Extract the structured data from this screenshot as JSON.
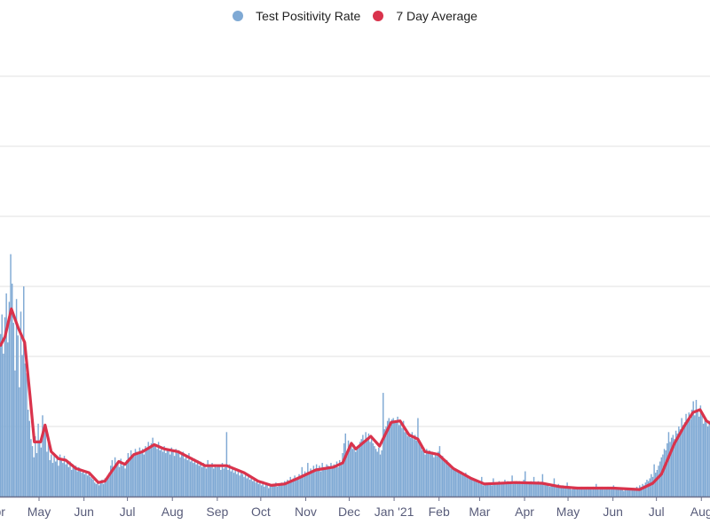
{
  "chart_data": {
    "type": "bar",
    "title": "",
    "xlabel": "",
    "ylabel": "",
    "legend_position": "top-center",
    "grid": true,
    "y_gridlines": [
      5,
      10,
      15,
      20,
      25,
      30
    ],
    "ylim": [
      0,
      30
    ],
    "start_date": "2020-04-01",
    "x_ticks": [
      {
        "day": 0,
        "label": "Apr"
      },
      {
        "day": 30,
        "label": "May"
      },
      {
        "day": 61,
        "label": "Jun"
      },
      {
        "day": 91,
        "label": "Jul"
      },
      {
        "day": 122,
        "label": "Aug"
      },
      {
        "day": 153,
        "label": "Sep"
      },
      {
        "day": 183,
        "label": "Oct"
      },
      {
        "day": 214,
        "label": "Nov"
      },
      {
        "day": 244,
        "label": "Dec"
      },
      {
        "day": 275,
        "label": "Jan '21"
      },
      {
        "day": 306,
        "label": "Feb"
      },
      {
        "day": 334,
        "label": "Mar"
      },
      {
        "day": 365,
        "label": "Apr"
      },
      {
        "day": 395,
        "label": "May"
      },
      {
        "day": 426,
        "label": "Jun"
      },
      {
        "day": 456,
        "label": "Jul"
      },
      {
        "day": 487,
        "label": "Aug"
      }
    ],
    "series": [
      {
        "name": "Test Positivity Rate",
        "color": "#7fa9d4",
        "type": "bar",
        "values": [
          9.8,
          12.1,
          8.5,
          11.6,
          13.0,
          10.2,
          12.8,
          14.5,
          11.0,
          13.9,
          17.3,
          15.2,
          12.4,
          9.0,
          14.1,
          11.5,
          7.8,
          13.2,
          10.1,
          15.0,
          9.5,
          8.8,
          6.2,
          5.4,
          4.1,
          3.6,
          2.8,
          4.3,
          3.1,
          5.2,
          4.0,
          3.5,
          5.8,
          4.6,
          5.1,
          3.2,
          3.9,
          2.6,
          3.0,
          2.4,
          3.1,
          2.5,
          2.9,
          2.2,
          3.0,
          2.7,
          2.4,
          2.9,
          2.3,
          2.6,
          2.1,
          2.5,
          1.9,
          2.3,
          2.0,
          2.2,
          1.8,
          2.1,
          2.0,
          1.7,
          1.9,
          1.6,
          1.8,
          1.5,
          1.7,
          1.4,
          1.3,
          1.2,
          1.0,
          0.9,
          1.1,
          0.8,
          1.0,
          1.2,
          0.9,
          1.3,
          1.1,
          1.5,
          1.7,
          2.2,
          2.6,
          2.0,
          2.8,
          2.3,
          2.5,
          2.1,
          2.7,
          2.2,
          2.4,
          2.0,
          2.6,
          3.1,
          2.8,
          3.3,
          3.0,
          2.9,
          3.4,
          3.2,
          3.0,
          3.5,
          3.1,
          3.4,
          3.0,
          3.6,
          3.3,
          3.9,
          3.5,
          3.8,
          4.2,
          3.6,
          3.7,
          3.4,
          3.9,
          3.3,
          3.5,
          3.2,
          3.6,
          3.1,
          3.4,
          3.3,
          3.0,
          3.5,
          3.2,
          2.9,
          3.4,
          3.1,
          3.3,
          2.8,
          3.0,
          3.2,
          2.7,
          2.9,
          2.6,
          3.1,
          2.5,
          2.8,
          2.4,
          2.7,
          2.3,
          2.6,
          2.2,
          2.5,
          2.1,
          2.4,
          2.3,
          2.0,
          2.6,
          2.2,
          2.1,
          2.4,
          2.0,
          2.3,
          2.1,
          2.2,
          2.2,
          1.9,
          2.4,
          2.0,
          2.1,
          4.6,
          1.9,
          2.3,
          1.8,
          2.1,
          1.7,
          2.0,
          1.6,
          1.9,
          1.5,
          1.8,
          1.6,
          1.4,
          1.7,
          1.3,
          1.5,
          1.2,
          1.4,
          1.1,
          1.3,
          1.0,
          1.2,
          0.9,
          1.0,
          0.8,
          1.1,
          0.7,
          0.9,
          0.8,
          0.6,
          0.8,
          0.7,
          0.9,
          0.8,
          1.0,
          0.7,
          0.9,
          0.8,
          1.0,
          0.9,
          1.1,
          0.9,
          1.2,
          1.0,
          1.4,
          1.1,
          1.3,
          1.5,
          1.2,
          1.4,
          1.6,
          1.3,
          2.1,
          1.5,
          1.8,
          1.6,
          2.4,
          1.7,
          2.0,
          1.8,
          2.2,
          1.9,
          2.3,
          2.0,
          2.2,
          1.8,
          2.4,
          2.1,
          2.0,
          2.3,
          2.2,
          2.1,
          2.4,
          2.0,
          2.3,
          2.2,
          2.5,
          2.1,
          2.6,
          2.4,
          3.1,
          3.8,
          4.5,
          3.2,
          4.0,
          3.6,
          3.9,
          3.4,
          3.7,
          3.2,
          3.5,
          3.6,
          3.9,
          4.1,
          4.4,
          4.0,
          4.6,
          4.2,
          4.5,
          3.9,
          4.3,
          3.8,
          3.6,
          3.4,
          3.2,
          3.5,
          3.0,
          3.3,
          7.4,
          4.8,
          5.0,
          5.4,
          5.6,
          5.2,
          5.5,
          5.6,
          5.3,
          5.4,
          5.7,
          5.1,
          5.3,
          4.9,
          5.4,
          4.6,
          4.8,
          4.3,
          4.5,
          4.2,
          4.6,
          4.1,
          4.4,
          4.0,
          5.6,
          3.9,
          3.6,
          3.3,
          3.5,
          3.0,
          3.4,
          3.1,
          3.3,
          3.0,
          3.2,
          2.8,
          3.1,
          2.9,
          3.2,
          3.6,
          2.7,
          2.9,
          2.6,
          2.4,
          2.6,
          2.2,
          2.3,
          2.0,
          2.1,
          1.9,
          2.0,
          1.8,
          1.9,
          1.7,
          1.8,
          1.6,
          1.5,
          1.7,
          1.4,
          1.3,
          1.4,
          1.2,
          1.3,
          1.1,
          1.2,
          1.0,
          1.1,
          0.9,
          1.4,
          0.8,
          0.9,
          1.0,
          0.9,
          0.9,
          1.0,
          0.8,
          1.3,
          0.9,
          1.0,
          0.9,
          1.1,
          1.0,
          0.9,
          1.0,
          1.2,
          0.9,
          1.1,
          1.0,
          1.0,
          1.5,
          0.9,
          1.0,
          1.1,
          1.0,
          1.1,
          0.9,
          1.0,
          1.2,
          1.8,
          1.0,
          0.9,
          1.0,
          1.1,
          1.0,
          1.4,
          0.9,
          1.0,
          1.1,
          0.9,
          1.0,
          1.6,
          0.9,
          0.8,
          0.9,
          0.8,
          0.7,
          0.9,
          0.8,
          1.3,
          0.7,
          0.8,
          0.9,
          0.7,
          0.6,
          0.8,
          0.7,
          0.6,
          1.0,
          0.7,
          0.6,
          0.5,
          0.7,
          0.6,
          0.6,
          0.7,
          0.5,
          0.6,
          0.7,
          0.6,
          0.5,
          0.6,
          0.7,
          0.6,
          0.6,
          0.5,
          0.7,
          0.6,
          0.9,
          0.6,
          0.5,
          0.6,
          0.7,
          0.6,
          0.5,
          0.6,
          0.7,
          0.6,
          0.5,
          0.6,
          0.8,
          0.6,
          0.5,
          0.6,
          0.5,
          0.6,
          0.5,
          0.4,
          0.6,
          0.5,
          0.6,
          0.5,
          0.6,
          0.5,
          0.6,
          0.5,
          0.7,
          0.6,
          0.8,
          0.7,
          0.9,
          0.8,
          1.0,
          1.2,
          1.1,
          1.3,
          1.6,
          1.4,
          2.3,
          1.7,
          1.9,
          2.2,
          2.5,
          2.8,
          3.0,
          3.4,
          3.3,
          3.8,
          4.6,
          3.9,
          4.2,
          4.4,
          4.1,
          4.7,
          4.5,
          5.0,
          4.8,
          5.6,
          5.1,
          5.3,
          5.9,
          5.4,
          6.0,
          5.5,
          6.2,
          6.8,
          5.8,
          6.9,
          6.1,
          5.7,
          6.5,
          5.9,
          5.2,
          5.6,
          5.3,
          5.0,
          5.4,
          5.2
        ]
      },
      {
        "name": "7 Day Average",
        "color": "#d9334c",
        "type": "line",
        "points": [
          [
            3,
            10.8
          ],
          [
            6,
            11.4
          ],
          [
            10.4,
            13.4
          ],
          [
            15.3,
            12.0
          ],
          [
            19.6,
            11.0
          ],
          [
            23.3,
            7.2
          ],
          [
            26.3,
            3.9
          ],
          [
            30.6,
            3.9
          ],
          [
            33.7,
            5.1
          ],
          [
            37.9,
            3.2
          ],
          [
            42.9,
            2.7
          ],
          [
            47.8,
            2.6
          ],
          [
            55,
            2.0
          ],
          [
            64,
            1.7
          ],
          [
            70.4,
            1.0
          ],
          [
            75,
            1.1
          ],
          [
            79.6,
            1.8
          ],
          [
            84.5,
            2.5
          ],
          [
            88.8,
            2.3
          ],
          [
            95,
            3.0
          ],
          [
            101,
            3.2
          ],
          [
            109,
            3.7
          ],
          [
            116,
            3.4
          ],
          [
            125.5,
            3.2
          ],
          [
            134.7,
            2.7
          ],
          [
            144,
            2.2
          ],
          [
            159,
            2.2
          ],
          [
            171,
            1.7
          ],
          [
            180.6,
            1.1
          ],
          [
            189.8,
            0.8
          ],
          [
            199,
            0.9
          ],
          [
            208,
            1.3
          ],
          [
            220.5,
            1.9
          ],
          [
            232.7,
            2.1
          ],
          [
            239,
            2.4
          ],
          [
            245,
            3.8
          ],
          [
            248,
            3.4
          ],
          [
            258.4,
            4.3
          ],
          [
            264.5,
            3.6
          ],
          [
            272.5,
            5.3
          ],
          [
            278.6,
            5.4
          ],
          [
            284.8,
            4.4
          ],
          [
            290.9,
            4.1
          ],
          [
            295.8,
            3.2
          ],
          [
            305,
            3.0
          ],
          [
            315.4,
            2.0
          ],
          [
            327.6,
            1.3
          ],
          [
            336.8,
            0.9
          ],
          [
            358,
            1.0
          ],
          [
            376.6,
            0.95
          ],
          [
            389,
            0.7
          ],
          [
            401,
            0.6
          ],
          [
            425.6,
            0.6
          ],
          [
            444,
            0.5
          ],
          [
            453,
            0.95
          ],
          [
            459,
            1.6
          ],
          [
            468,
            3.8
          ],
          [
            474.5,
            5.0
          ],
          [
            480.7,
            6.0
          ],
          [
            485.6,
            6.2
          ],
          [
            490,
            5.4
          ],
          [
            493,
            5.2
          ]
        ]
      }
    ]
  }
}
